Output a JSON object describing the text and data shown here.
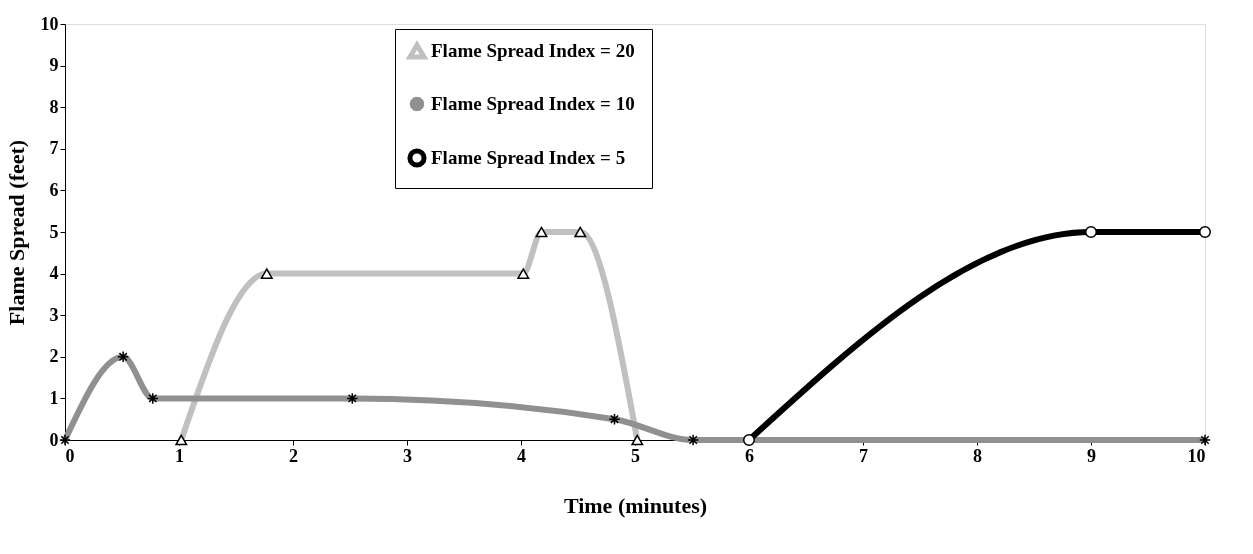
{
  "chart_data": {
    "type": "line",
    "xlabel": "Time (minutes)",
    "ylabel": "Flame Spread (feet)",
    "xlim": [
      0,
      10
    ],
    "xticks": [
      0,
      1,
      2,
      3,
      4,
      5,
      6,
      7,
      8,
      9,
      10
    ],
    "ylim": [
      0,
      10
    ],
    "yticks": [
      0,
      1,
      2,
      3,
      4,
      5,
      6,
      7,
      8,
      9,
      10
    ],
    "grid": false,
    "legend": "top",
    "line_style": "solid",
    "series": [
      {
        "name": "Flame Spread Index =  20",
        "color": "#c0c0c0",
        "marker": "triangle",
        "x": [
          1.02,
          1.77,
          4.02,
          4.18,
          4.52,
          5.02
        ],
        "values": [
          0,
          4,
          4,
          5,
          5,
          0
        ]
      },
      {
        "name": "Flame Spread Index =  10",
        "color": "#909090",
        "marker": "cross",
        "x": [
          0,
          0.51,
          0.77,
          2.52,
          4.82,
          5.51,
          10
        ],
        "values": [
          0,
          2,
          1,
          1,
          0.5,
          0,
          0
        ]
      },
      {
        "name": "Flame Spread Index =  5",
        "color": "#000000",
        "marker": "circle",
        "x": [
          6,
          9,
          10
        ],
        "values": [
          0,
          5,
          5
        ]
      }
    ]
  }
}
